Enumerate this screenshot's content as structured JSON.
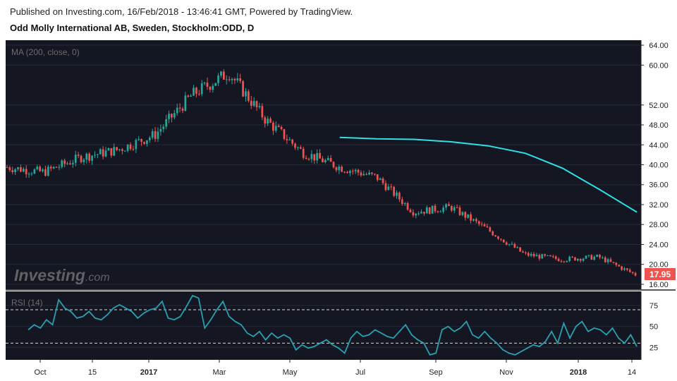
{
  "header": {
    "published": "Published on Investing.com, 16/Feb/2018 - 13:46:41 GMT, Powered by TradingView.",
    "title": "Odd Molly International AB, Sweden, Stockholm:ODD, D"
  },
  "watermark": {
    "brand": "Investing",
    "suffix": ".com"
  },
  "colors": {
    "background": "#141722",
    "up_candle": "#26a69a",
    "down_candle": "#ef5350",
    "ma_line": "#2fe0e6",
    "rsi_line": "#2a9fb0",
    "price_tag": "#ef5350"
  },
  "chart_data": [
    {
      "type": "line",
      "title": "Odd Molly International AB, Sweden, Stockholm:ODD, D",
      "indicator_label": "MA (200, close, 0)",
      "ylim": [
        15,
        65
      ],
      "y_ticks": [
        "64.00",
        "60.00",
        "52.00",
        "48.00",
        "44.00",
        "40.00",
        "36.00",
        "32.00",
        "28.00",
        "24.00",
        "20.00",
        "16.00"
      ],
      "x_ticks": [
        "Oct",
        "15",
        "2017",
        "Mar",
        "May",
        "Jul",
        "Sep",
        "Nov",
        "2018",
        "14"
      ],
      "last_price_label": "17.95",
      "last_price": 17.95,
      "series": [
        {
          "kind": "candlestick-close",
          "x": [
            "Sep 2016",
            "Oct 2016",
            "Nov 2016",
            "Dec 2016",
            "Jan 2017",
            "Feb 2017",
            "Mar 2017",
            "Apr 2017",
            "May 2017",
            "Jun 2017",
            "Jul 2017",
            "Aug 2017",
            "Sep 2017",
            "Oct 2017",
            "Nov 2017",
            "Dec 2017",
            "Jan 2018",
            "Feb 2018"
          ],
          "values": [
            39.5,
            38.5,
            41.5,
            43.0,
            46.0,
            54.0,
            58.5,
            49.0,
            42.5,
            39.5,
            37.5,
            30.5,
            31.5,
            27.0,
            22.0,
            21.0,
            21.5,
            17.95
          ]
        },
        {
          "kind": "ma",
          "name": "MA (200, close, 0)",
          "x": [
            "Jun 2017",
            "Jul 2017",
            "Aug 2017",
            "Sep 2017",
            "Oct 2017",
            "Nov 2017",
            "Dec 2017",
            "Jan 2018",
            "Feb 2018"
          ],
          "values": [
            45.5,
            45.2,
            45.1,
            44.6,
            43.8,
            42.3,
            39.3,
            35.0,
            30.5
          ]
        }
      ]
    },
    {
      "type": "line",
      "indicator_label": "RSI (14)",
      "ylim": [
        10,
        92
      ],
      "y_ticks": [
        "75",
        "50",
        "25"
      ],
      "reference_lines": [
        70,
        30
      ],
      "series": [
        {
          "name": "RSI (14)",
          "values": [
            46,
            52,
            48,
            58,
            52,
            82,
            72,
            68,
            60,
            62,
            68,
            60,
            58,
            64,
            72,
            76,
            72,
            68,
            60,
            66,
            70,
            72,
            80,
            60,
            58,
            62,
            74,
            87,
            84,
            48,
            58,
            70,
            80,
            62,
            56,
            52,
            42,
            38,
            44,
            34,
            42,
            36,
            40,
            36,
            22,
            28,
            24,
            26,
            30,
            34,
            28,
            24,
            18,
            36,
            44,
            38,
            40,
            46,
            42,
            38,
            36,
            44,
            52,
            40,
            34,
            30,
            16,
            18,
            46,
            50,
            44,
            48,
            56,
            40,
            36,
            44,
            36,
            30,
            22,
            18,
            16,
            20,
            24,
            28,
            26,
            32,
            44,
            30,
            54,
            36,
            50,
            56,
            44,
            48,
            46,
            40,
            48,
            36,
            30,
            40,
            26
          ]
        }
      ]
    }
  ]
}
